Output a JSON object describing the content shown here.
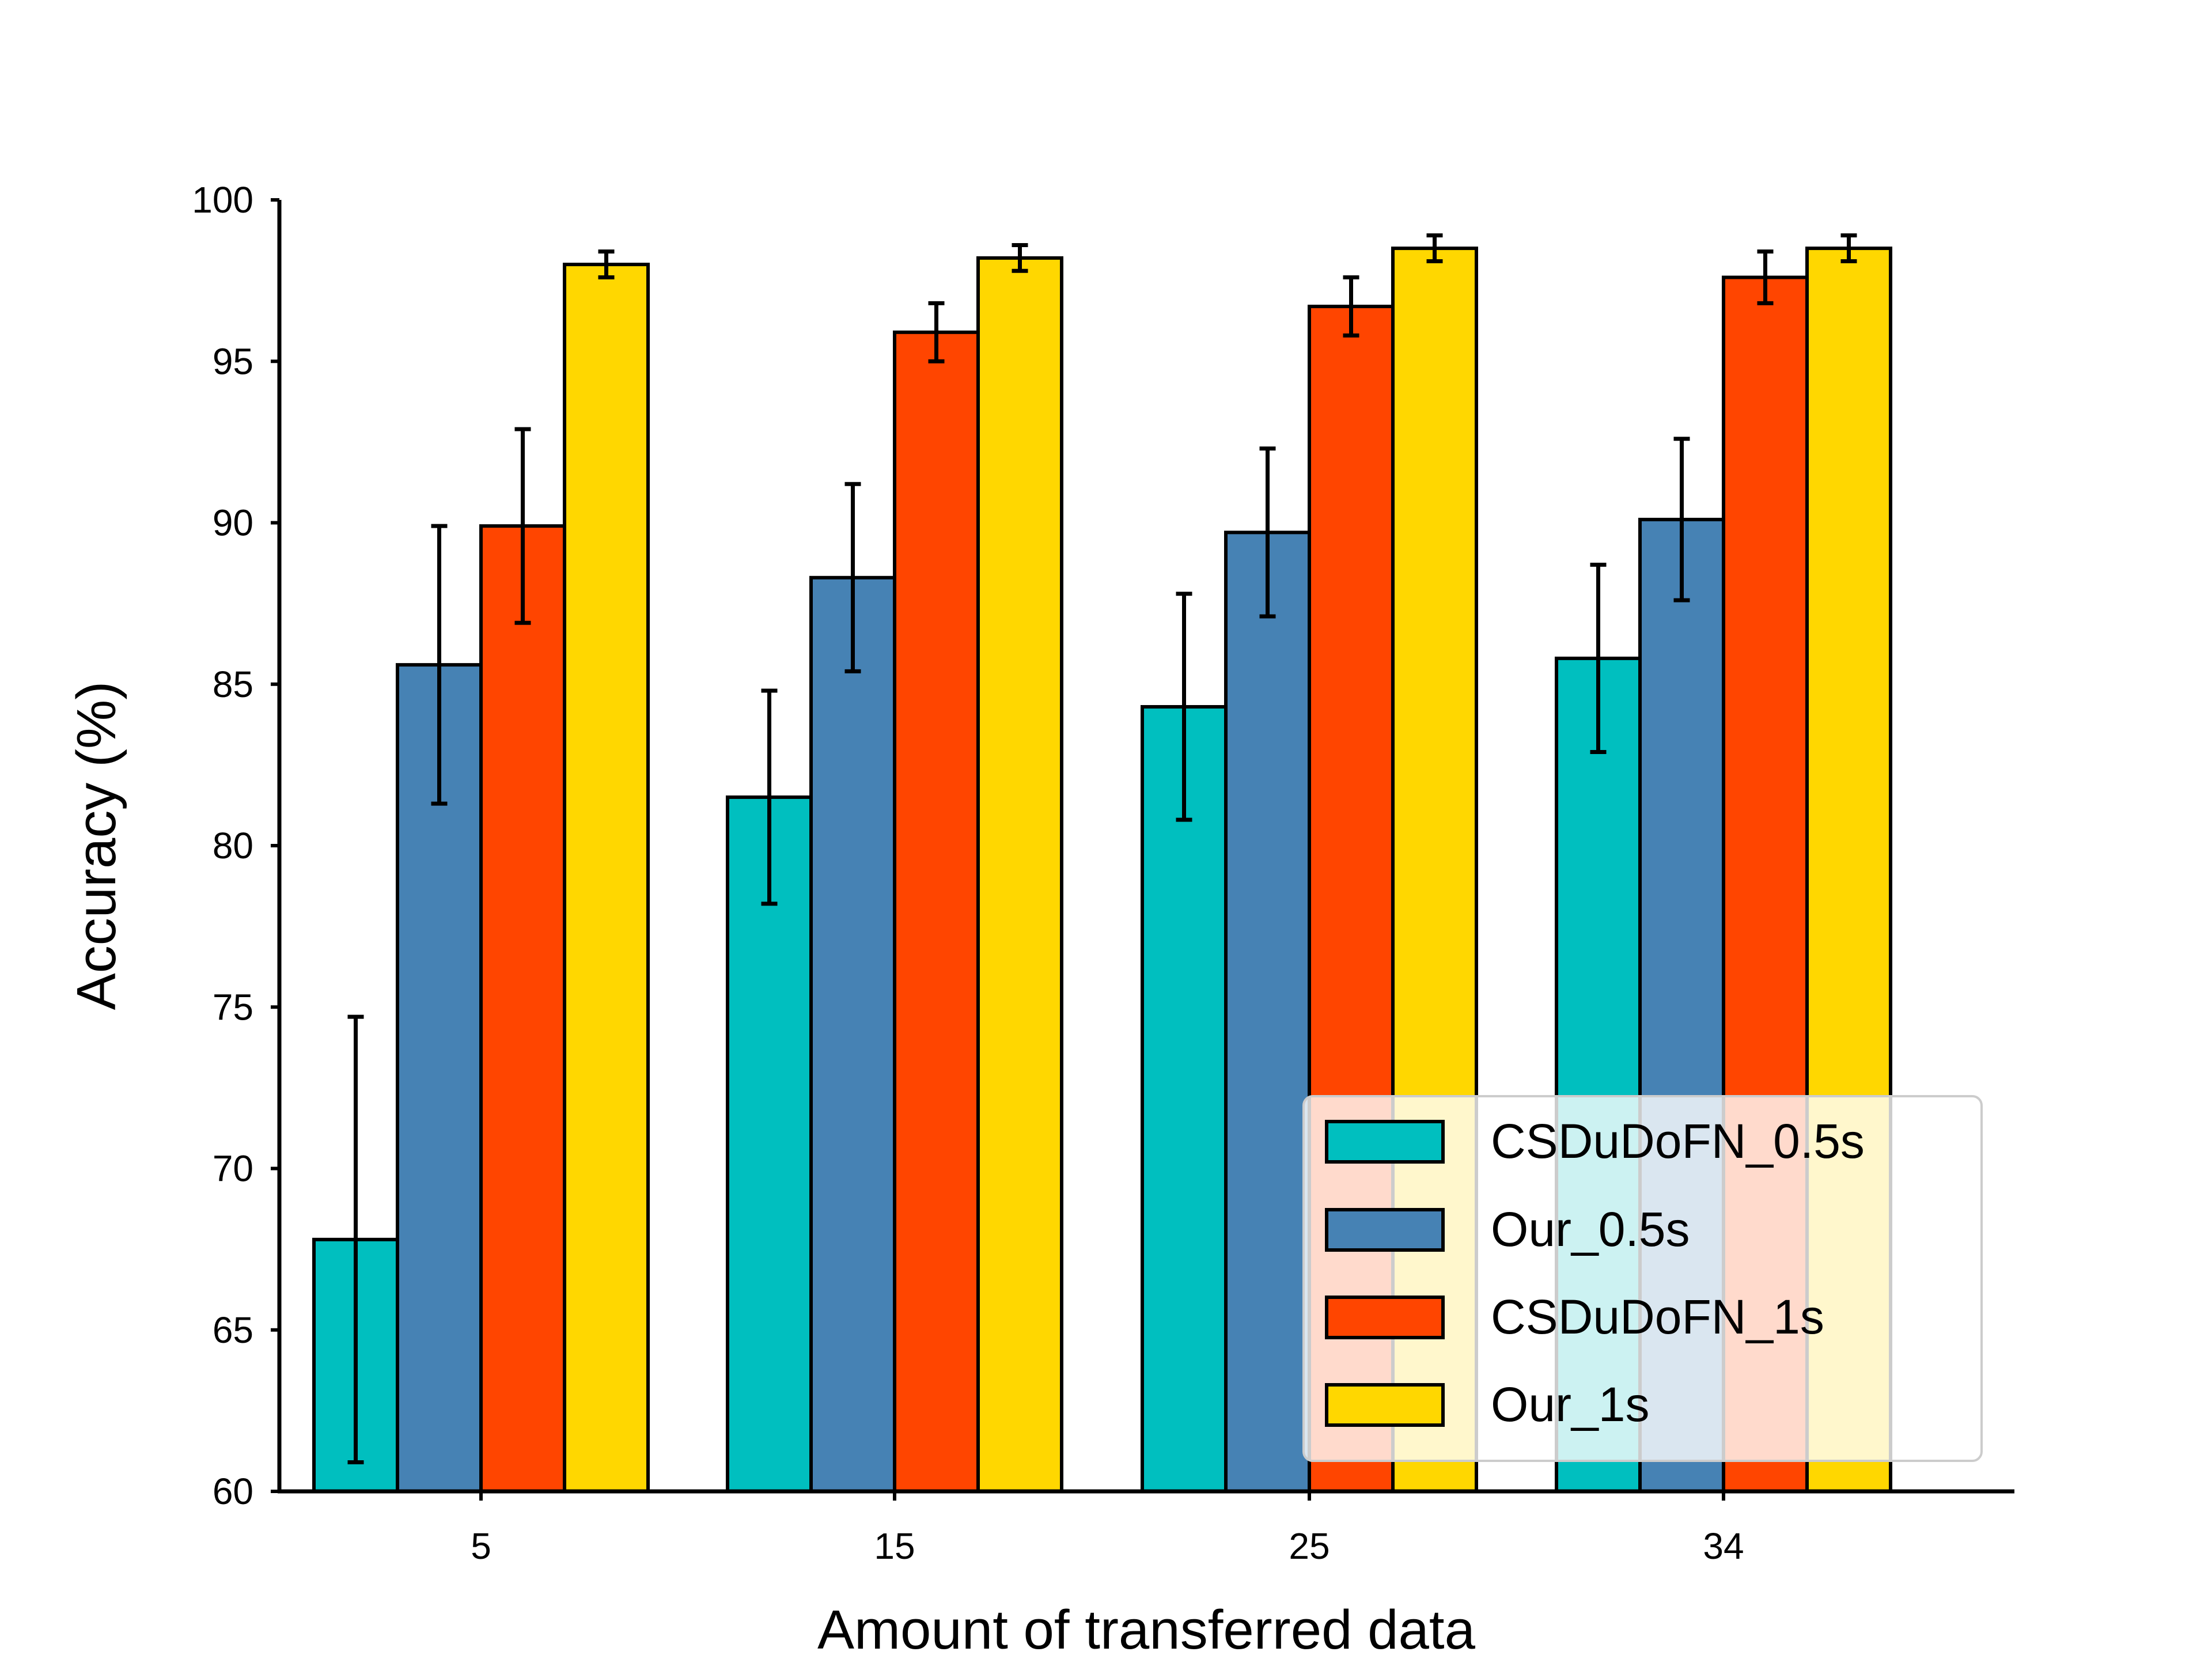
{
  "chart_data": {
    "type": "bar",
    "title": "",
    "xlabel": "Amount of transferred data",
    "ylabel": "Accuracy (%)",
    "categories": [
      "5",
      "15",
      "25",
      "34"
    ],
    "ylim": [
      60,
      100
    ],
    "yticks": [
      60,
      65,
      70,
      75,
      80,
      85,
      90,
      95,
      100
    ],
    "grid": false,
    "legend": "bottom-right",
    "series": [
      {
        "name": "CSDuDoFN_0.5s",
        "color": "#00BFBF",
        "values": [
          67.8,
          81.5,
          84.3,
          85.8
        ],
        "errors": [
          6.9,
          3.3,
          3.5,
          2.9
        ]
      },
      {
        "name": "Our_0.5s",
        "color": "#4682B4",
        "values": [
          85.6,
          88.3,
          89.7,
          90.1
        ],
        "errors": [
          4.3,
          2.9,
          2.6,
          2.5
        ]
      },
      {
        "name": "CSDuDoFN_1s",
        "color": "#FF4500",
        "values": [
          89.9,
          95.9,
          96.7,
          97.6
        ],
        "errors": [
          3.0,
          0.9,
          0.9,
          0.8
        ]
      },
      {
        "name": "Our_1s",
        "color": "#FFD700",
        "values": [
          98.0,
          98.2,
          98.5,
          98.5
        ],
        "errors": [
          0.4,
          0.4,
          0.4,
          0.4
        ]
      }
    ]
  }
}
